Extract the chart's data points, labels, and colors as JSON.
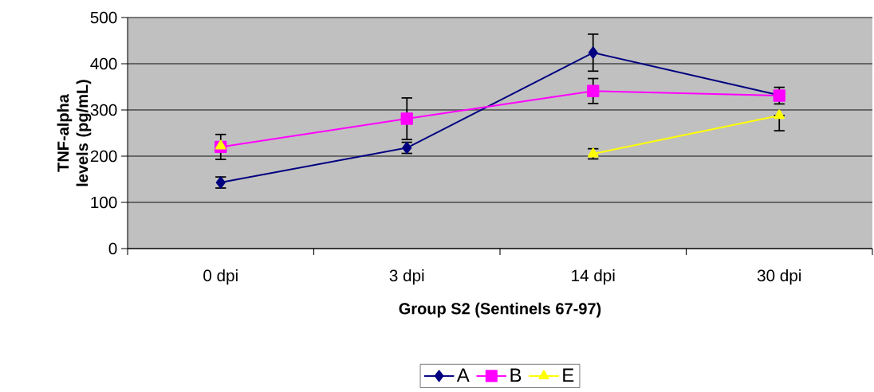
{
  "chart_data": {
    "type": "line",
    "xlabel": "Group S2 (Sentinels 67-97)",
    "ylabel": "TNF-alpha levels (pg/mL)",
    "categories": [
      "0 dpi",
      "3 dpi",
      "14 dpi",
      "30 dpi"
    ],
    "ylim": [
      0,
      500
    ],
    "yticks": [
      0,
      100,
      200,
      300,
      400,
      500
    ],
    "grid": "y",
    "legend": "bottom",
    "series": [
      {
        "name": "A",
        "color": "#000080",
        "marker": "diamond",
        "values": [
          143,
          218,
          424,
          332
        ],
        "errors": [
          12,
          12,
          40,
          null
        ]
      },
      {
        "name": "B",
        "color": "#ff00ff",
        "marker": "square",
        "values": [
          220,
          281,
          341,
          331
        ],
        "errors": [
          27,
          45,
          27,
          18
        ]
      },
      {
        "name": "E",
        "color": "#ffff00",
        "marker": "triangle",
        "values": [
          222,
          null,
          205,
          288
        ],
        "errors": [
          null,
          null,
          11,
          [
            255,
            288
          ]
        ]
      }
    ]
  }
}
